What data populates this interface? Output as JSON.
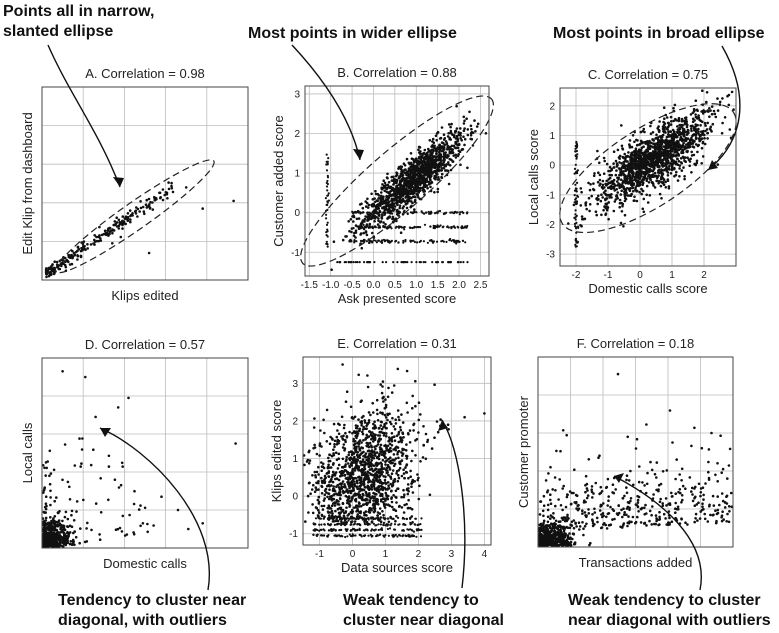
{
  "figure": {
    "annotations": [
      {
        "lines": [
          "Points all in narrow,",
          "slanted ellipse"
        ]
      },
      {
        "lines": [
          "Most points in wider ellipse"
        ]
      },
      {
        "lines": [
          "Most points in broad ellipse"
        ]
      },
      {
        "lines": [
          "Tendency to cluster near",
          "diagonal, with outliers"
        ]
      },
      {
        "lines": [
          "Weak tendency to",
          "cluster near diagonal"
        ]
      },
      {
        "lines": [
          "Weak tendency to cluster",
          "near diagonal with outliers"
        ]
      }
    ]
  },
  "chart_data": [
    {
      "type": "scatter",
      "title": "A. Correlation = 0.98",
      "xlabel": "Klips edited",
      "ylabel": "Edit Klip from dashboard",
      "correlation": 0.98,
      "xlim": [
        0,
        1
      ],
      "ylim": [
        0,
        1
      ],
      "xticks": [],
      "yticks": [],
      "grid": true,
      "ellipse": true
    },
    {
      "type": "scatter",
      "title": "B. Correlation = 0.88",
      "xlabel": "Ask presented score",
      "ylabel": "Customer added score",
      "correlation": 0.88,
      "xlim": [
        -1.6,
        2.7
      ],
      "ylim": [
        -1.6,
        3.2
      ],
      "xticks": [
        "-1.5",
        "-1.0",
        "-0.5",
        "0.0",
        "0.5",
        "1.0",
        "1.5",
        "2.0",
        "2.5"
      ],
      "yticks": [
        "-1",
        "0",
        "1",
        "2",
        "3"
      ],
      "grid": true,
      "ellipse": true
    },
    {
      "type": "scatter",
      "title": "C. Correlation = 0.75",
      "xlabel": "Domestic calls score",
      "ylabel": "Local calls score",
      "correlation": 0.75,
      "xlim": [
        -2.5,
        3.0
      ],
      "ylim": [
        -3.4,
        2.6
      ],
      "xticks": [
        "-2",
        "-1",
        "0",
        "1",
        "2"
      ],
      "yticks": [
        "-3",
        "-2",
        "-1",
        "0",
        "1",
        "2"
      ],
      "grid": true,
      "ellipse": true
    },
    {
      "type": "scatter",
      "title": "D. Correlation = 0.57",
      "xlabel": "Domestic calls",
      "ylabel": "Local calls",
      "correlation": 0.57,
      "xlim": [
        0,
        1
      ],
      "ylim": [
        0,
        1
      ],
      "xticks": [],
      "yticks": [],
      "grid": true,
      "ellipse": false
    },
    {
      "type": "scatter",
      "title": "E. Correlation = 0.31",
      "xlabel": "Data sources score",
      "ylabel": "Klips edited score",
      "correlation": 0.31,
      "xlim": [
        -1.5,
        4.2
      ],
      "ylim": [
        -1.3,
        3.7
      ],
      "xticks": [
        "-1",
        "0",
        "1",
        "2",
        "3",
        "4"
      ],
      "yticks": [
        "-1",
        "0",
        "1",
        "2",
        "3"
      ],
      "grid": true,
      "ellipse": false
    },
    {
      "type": "scatter",
      "title": "F. Correlation = 0.18",
      "xlabel": "Transactions added",
      "ylabel": "Customer promoter",
      "correlation": 0.18,
      "xlim": [
        0,
        1
      ],
      "ylim": [
        0,
        1
      ],
      "xticks": [],
      "yticks": [],
      "grid": true,
      "ellipse": false
    }
  ]
}
